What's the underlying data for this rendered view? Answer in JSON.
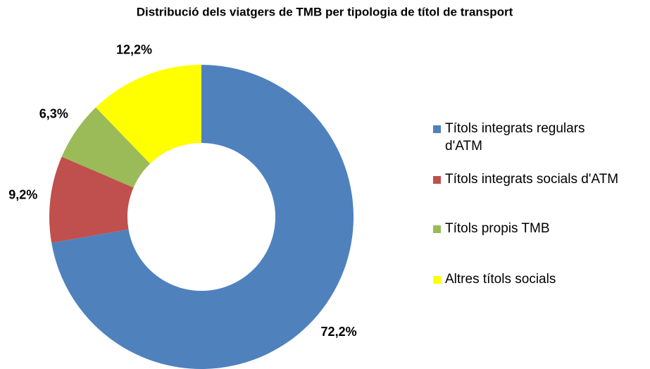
{
  "chart_data": {
    "type": "donut",
    "title": "Distribució dels viatgers de TMB per tipologia de títol de transport",
    "categories": [
      "Títols integrats regulars d'ATM",
      "Títols integrats socials d'ATM",
      "Títols propis TMB",
      "Altres títols socials"
    ],
    "values": [
      72.2,
      9.2,
      6.3,
      12.2
    ],
    "value_labels": [
      "72,2%",
      "9,2%",
      "6,3%",
      "12,2%"
    ],
    "colors": [
      "#4f81bd",
      "#c0504d",
      "#9bbb59",
      "#ffff00"
    ],
    "legend": "right"
  }
}
